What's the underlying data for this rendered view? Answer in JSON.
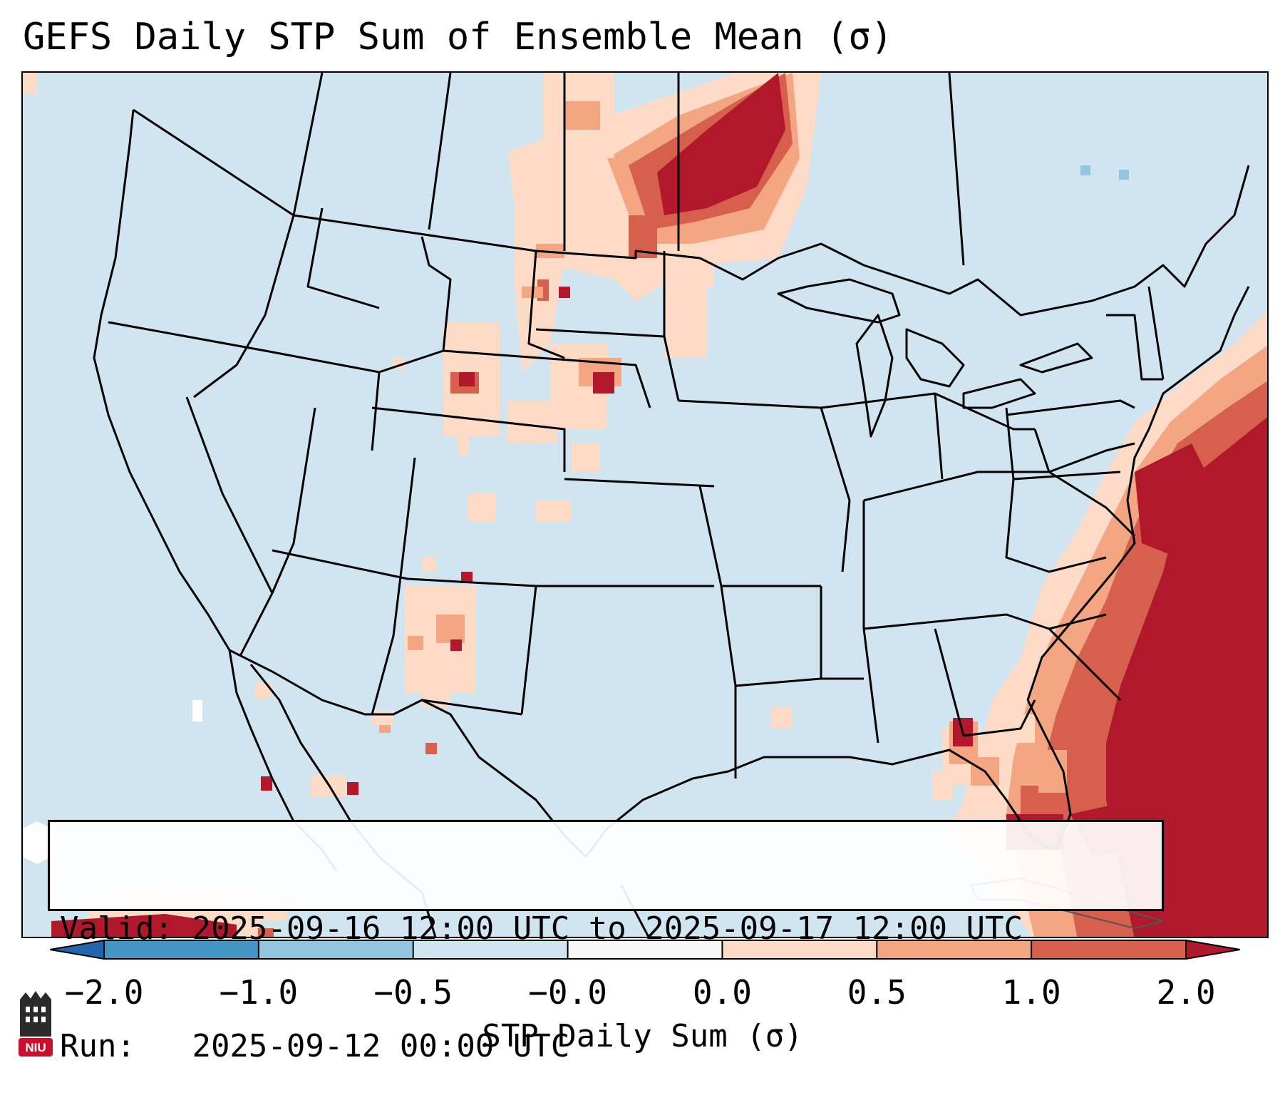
{
  "title": "GEFS Daily STP Sum of Ensemble Mean (σ)",
  "info": {
    "valid_label": "Valid:",
    "valid_value": "2025-09-16 12:00 UTC to 2025-09-17 12:00 UTC",
    "run_label": "Run:",
    "run_value": "2025-09-12 00:00 UTC"
  },
  "colorbar": {
    "label": "STP Daily Sum (σ)",
    "ticks": [
      "−2.0",
      "−1.0",
      "−0.5",
      "−0.0",
      "0.0",
      "0.5",
      "1.0",
      "2.0"
    ],
    "colors": [
      "#2166ac",
      "#4393c3",
      "#92c5de",
      "#d1e5f0",
      "#f7f7f7",
      "#fddbc7",
      "#f4a582",
      "#d6604d",
      "#b2182b"
    ],
    "extend": "both"
  },
  "colors": {
    "background_sea": "#d1e5f0",
    "light": "#fddbc7",
    "medium": "#f4a582",
    "strong": "#d6604d",
    "extreme": "#b2182b"
  },
  "logo": {
    "text": "NIU",
    "icon": "niu-logo-icon"
  }
}
